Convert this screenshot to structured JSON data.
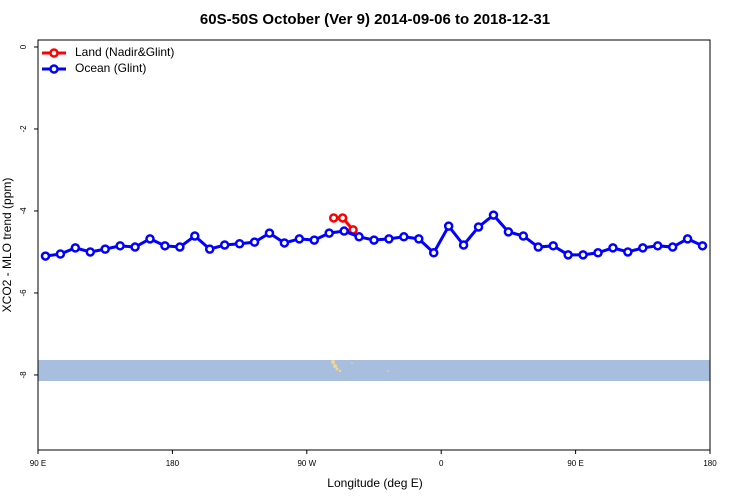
{
  "chart_data": {
    "type": "line",
    "title": "60S-50S October (Ver 9)   2014-09-06 to 2018-12-31",
    "x_label": "Longitude (deg E)",
    "y_label": "XCO2 - MLO trend (ppm)",
    "xlim": [
      90,
      540
    ],
    "xticks": [
      {
        "value": 90,
        "label": "90 E"
      },
      {
        "value": 180,
        "label": "180"
      },
      {
        "value": 270,
        "label": "90 W"
      },
      {
        "value": 360,
        "label": "0"
      },
      {
        "value": 450,
        "label": "90 E"
      },
      {
        "value": 540,
        "label": "180"
      }
    ],
    "ylim": [
      -9.83,
      0.17
    ],
    "yticks": [
      0,
      -2,
      -4,
      -6,
      -8
    ],
    "legend": "top-left",
    "series": [
      {
        "name": "Land (Nadir&Glint)",
        "color": "#ff0000",
        "x": [
          288,
          294,
          301
        ],
        "values": [
          -4.17,
          -4.17,
          -4.46
        ]
      },
      {
        "name": "Ocean (Glint)",
        "color": "#0000ff",
        "x": [
          95,
          105,
          115,
          125,
          135,
          145,
          155,
          165,
          175,
          185,
          195,
          205,
          215,
          225,
          235,
          245,
          255,
          265,
          275,
          285,
          295,
          305,
          315,
          325,
          335,
          345,
          355,
          365,
          375,
          385,
          395,
          405,
          415,
          425,
          435,
          445,
          455,
          465,
          475,
          485,
          495,
          505,
          515,
          525,
          535
        ],
        "values": [
          -5.1,
          -5.05,
          -4.9,
          -5.0,
          -4.93,
          -4.85,
          -4.88,
          -4.68,
          -4.85,
          -4.88,
          -4.61,
          -4.93,
          -4.83,
          -4.8,
          -4.76,
          -4.54,
          -4.78,
          -4.68,
          -4.71,
          -4.54,
          -4.49,
          -4.63,
          -4.71,
          -4.68,
          -4.63,
          -4.68,
          -5.02,
          -4.37,
          -4.83,
          -4.39,
          -4.1,
          -4.51,
          -4.61,
          -4.88,
          -4.85,
          -5.07,
          -5.07,
          -5.02,
          -4.9,
          -5.0,
          -4.9,
          -4.85,
          -4.88,
          -4.68,
          -4.85
        ]
      }
    ]
  }
}
